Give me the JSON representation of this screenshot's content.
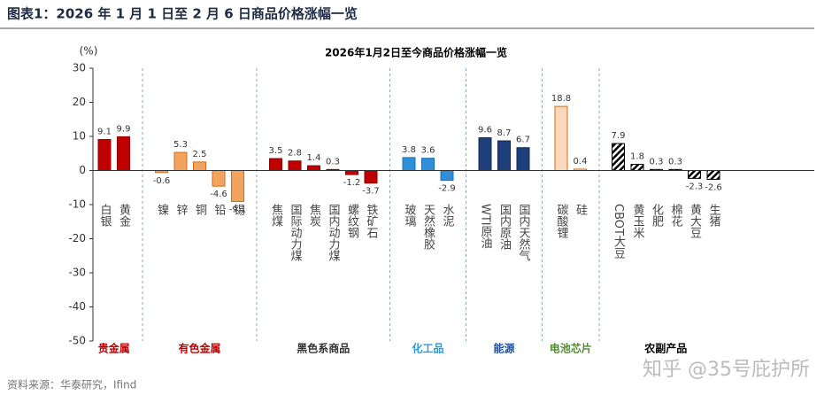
{
  "header": {
    "title": "图表1：2026 年 1 月 1 日至 2 月 6 日商品价格涨幅一览"
  },
  "chart_data": {
    "type": "bar",
    "title": "2026年1月2日至今商品价格涨幅一览",
    "y_label": "(%)",
    "ylim": [
      -50,
      30
    ],
    "yticks": [
      -50,
      -40,
      -30,
      -20,
      -10,
      0,
      10,
      20,
      30
    ],
    "group_separators": true,
    "groups": [
      {
        "name": "贵金属",
        "color": "#c00000",
        "edgecolor": "#a00000",
        "label_color": "#c00000",
        "hatch": false,
        "categories": [
          "白银",
          "黄金"
        ],
        "values": [
          9.1,
          9.9
        ]
      },
      {
        "name": "有色金属",
        "color": "#f2a35e",
        "edgecolor": "#d46a1a",
        "label_color": "#c00000",
        "hatch": false,
        "categories": [
          "镍",
          "锌",
          "铜",
          "铅",
          "锡"
        ],
        "values": [
          -0.6,
          5.3,
          2.5,
          -4.6,
          -9.1
        ]
      },
      {
        "name": "黑色系商品",
        "color": "#c00000",
        "edgecolor": "#8b0000",
        "label_color": "#333333",
        "hatch": false,
        "categories": [
          "焦煤",
          "国际动力煤",
          "焦炭",
          "国内动力煤",
          "螺纹钢",
          "铁矿石"
        ],
        "values": [
          3.5,
          2.8,
          1.4,
          0.3,
          -1.2,
          -3.7
        ]
      },
      {
        "name": "化工品",
        "color": "#2f8fd8",
        "edgecolor": "#1c6fb0",
        "label_color": "#2f9ad8",
        "hatch": false,
        "categories": [
          "玻璃",
          "天然橡胶",
          "水泥"
        ],
        "values": [
          3.8,
          3.6,
          -2.9
        ]
      },
      {
        "name": "能源",
        "color": "#1f3f7a",
        "edgecolor": "#142b57",
        "label_color": "#1f4e9a",
        "hatch": false,
        "categories": [
          "WTI原油",
          "国内原油",
          "国内天然气"
        ],
        "values": [
          9.6,
          8.7,
          6.7
        ]
      },
      {
        "name": "电池芯片",
        "color": "#fcd9bd",
        "edgecolor": "#d46a1a",
        "label_color": "#4e8c2e",
        "hatch": false,
        "categories": [
          "碳酸锂",
          "硅"
        ],
        "values": [
          18.8,
          0.4
        ]
      },
      {
        "name": "农副产品",
        "color": "#000000",
        "edgecolor": "#000000",
        "label_color": "#000000",
        "hatch": true,
        "categories": [
          "CBOT大豆",
          "黄玉米",
          "化肥",
          "棉花",
          "黄大豆",
          "生猪"
        ],
        "values": [
          7.9,
          1.8,
          0.3,
          0.3,
          -2.3,
          -2.6
        ]
      }
    ]
  },
  "footer": {
    "source": "资料来源：华泰研究，Ifind",
    "watermark": "知乎 @35号庇护所"
  }
}
